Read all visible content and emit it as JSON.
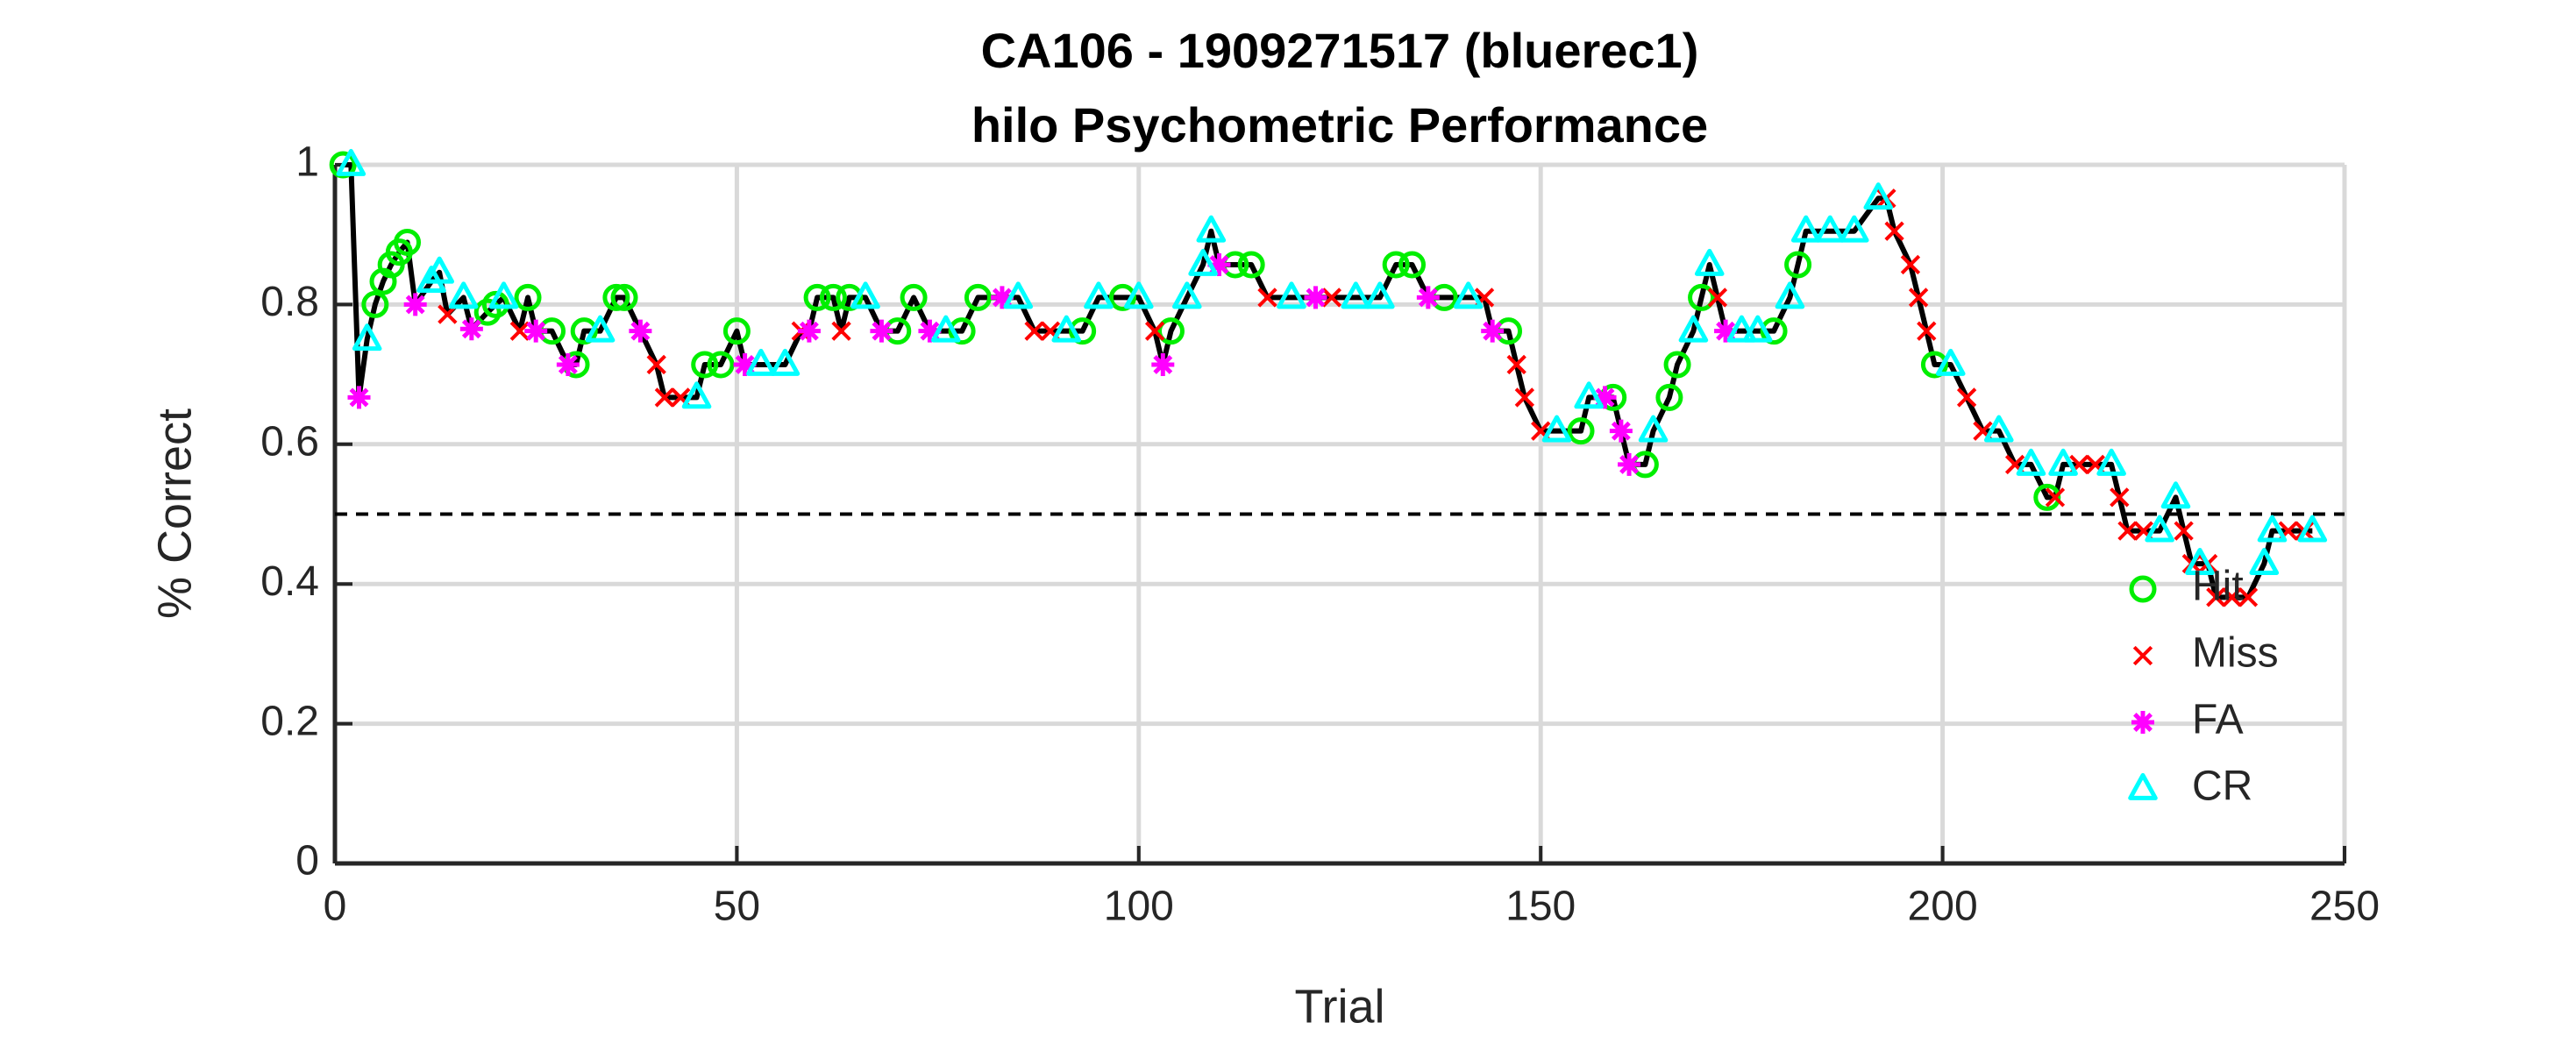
{
  "chart_data": {
    "type": "line",
    "title": "CA106 - 1909271517 (bluerec1)",
    "subtitle": "hilo Psychometric Performance",
    "x_label": "Trial",
    "y_label": "% Correct",
    "xlim": [
      0,
      250
    ],
    "ylim": [
      0,
      1
    ],
    "xticks": [
      0,
      50,
      100,
      150,
      200,
      250
    ],
    "yticks": [
      0,
      0.2,
      0.4,
      0.6,
      0.8,
      1
    ],
    "grid": true,
    "legend": "lower right",
    "reference_line": {
      "value": 0.5,
      "color": "#000000",
      "dashed": true
    },
    "line": {
      "color": "#000000",
      "x": [
        1,
        2,
        3,
        4,
        5,
        6,
        7,
        8,
        9,
        10,
        12,
        13,
        14,
        16,
        17,
        19,
        20,
        21,
        23,
        24,
        25,
        27,
        29,
        30,
        31,
        33,
        35,
        36,
        38,
        40,
        41,
        43,
        45,
        46,
        48,
        50,
        51,
        53,
        56,
        58,
        59,
        60,
        62,
        63,
        64,
        66,
        68,
        70,
        72,
        74,
        76,
        78,
        80,
        83,
        85,
        87,
        89,
        91,
        93,
        95,
        98,
        100,
        102,
        103,
        104,
        106,
        108,
        109,
        110,
        112,
        114,
        116,
        119,
        122,
        124,
        127,
        130,
        132,
        134,
        136,
        138,
        141,
        143,
        144,
        146,
        147,
        148,
        150,
        152,
        155,
        156,
        158,
        159,
        160,
        161,
        163,
        164,
        166,
        167,
        169,
        170,
        171,
        172,
        173,
        175,
        177,
        179,
        181,
        182,
        183,
        186,
        189,
        192,
        193,
        194,
        196,
        197,
        198,
        199,
        201,
        203,
        205,
        207,
        209,
        211,
        213,
        214,
        215,
        217,
        219,
        221,
        222,
        223,
        225,
        227,
        229,
        230,
        231,
        232,
        233,
        234,
        236,
        238,
        240,
        241,
        243,
        245,
        246
      ],
      "values": [
        1.0,
        1.0,
        0.667,
        0.75,
        0.8,
        0.833,
        0.857,
        0.875,
        0.889,
        0.8,
        0.833,
        0.846,
        0.786,
        0.81,
        0.765,
        0.789,
        0.8,
        0.81,
        0.762,
        0.81,
        0.762,
        0.762,
        0.714,
        0.714,
        0.762,
        0.762,
        0.81,
        0.81,
        0.762,
        0.714,
        0.667,
        0.667,
        0.667,
        0.714,
        0.714,
        0.762,
        0.714,
        0.714,
        0.714,
        0.762,
        0.762,
        0.81,
        0.81,
        0.762,
        0.81,
        0.81,
        0.762,
        0.762,
        0.81,
        0.762,
        0.762,
        0.762,
        0.81,
        0.81,
        0.81,
        0.762,
        0.762,
        0.762,
        0.762,
        0.81,
        0.81,
        0.81,
        0.762,
        0.714,
        0.762,
        0.81,
        0.857,
        0.905,
        0.857,
        0.857,
        0.857,
        0.81,
        0.81,
        0.81,
        0.81,
        0.81,
        0.81,
        0.857,
        0.857,
        0.81,
        0.81,
        0.81,
        0.81,
        0.762,
        0.762,
        0.714,
        0.667,
        0.619,
        0.619,
        0.619,
        0.667,
        0.667,
        0.667,
        0.619,
        0.571,
        0.571,
        0.619,
        0.667,
        0.714,
        0.762,
        0.81,
        0.857,
        0.81,
        0.762,
        0.762,
        0.762,
        0.762,
        0.81,
        0.857,
        0.905,
        0.905,
        0.905,
        0.952,
        0.952,
        0.905,
        0.857,
        0.81,
        0.762,
        0.714,
        0.714,
        0.667,
        0.619,
        0.619,
        0.571,
        0.571,
        0.524,
        0.524,
        0.571,
        0.571,
        0.571,
        0.571,
        0.524,
        0.476,
        0.476,
        0.476,
        0.524,
        0.476,
        0.429,
        0.429,
        0.429,
        0.381,
        0.381,
        0.381,
        0.429,
        0.476,
        0.476,
        0.476,
        0.476
      ]
    },
    "series": [
      {
        "name": "Hit",
        "color": "#00ee00",
        "marker": "circle",
        "x": [
          1,
          5,
          6,
          7,
          8,
          9,
          19,
          20,
          24,
          27,
          30,
          31,
          35,
          36,
          46,
          48,
          50,
          60,
          62,
          64,
          70,
          72,
          78,
          80,
          93,
          98,
          104,
          112,
          114,
          132,
          134,
          138,
          146,
          155,
          159,
          163,
          166,
          167,
          170,
          179,
          182,
          199,
          213
        ],
        "values": [
          1.0,
          0.8,
          0.833,
          0.857,
          0.875,
          0.889,
          0.789,
          0.8,
          0.81,
          0.762,
          0.714,
          0.762,
          0.81,
          0.81,
          0.714,
          0.714,
          0.762,
          0.81,
          0.81,
          0.81,
          0.762,
          0.81,
          0.762,
          0.81,
          0.762,
          0.81,
          0.762,
          0.857,
          0.857,
          0.857,
          0.857,
          0.81,
          0.762,
          0.619,
          0.667,
          0.571,
          0.667,
          0.714,
          0.81,
          0.762,
          0.857,
          0.714,
          0.524
        ]
      },
      {
        "name": "Miss",
        "color": "#ff0000",
        "marker": "x",
        "x": [
          14,
          23,
          40,
          41,
          43,
          58,
          63,
          87,
          89,
          102,
          116,
          124,
          143,
          147,
          148,
          150,
          172,
          193,
          194,
          196,
          197,
          198,
          203,
          205,
          209,
          214,
          217,
          219,
          222,
          223,
          225,
          230,
          231,
          233,
          234,
          236,
          238,
          243,
          245
        ],
        "values": [
          0.786,
          0.762,
          0.714,
          0.667,
          0.667,
          0.762,
          0.762,
          0.762,
          0.762,
          0.762,
          0.81,
          0.81,
          0.81,
          0.714,
          0.667,
          0.619,
          0.81,
          0.952,
          0.905,
          0.857,
          0.81,
          0.762,
          0.667,
          0.619,
          0.571,
          0.524,
          0.571,
          0.571,
          0.524,
          0.476,
          0.476,
          0.476,
          0.429,
          0.429,
          0.381,
          0.381,
          0.381,
          0.476,
          0.476
        ]
      },
      {
        "name": "FA",
        "color": "#ff00ff",
        "marker": "asterisk",
        "x": [
          3,
          10,
          17,
          25,
          29,
          38,
          51,
          59,
          68,
          74,
          83,
          103,
          110,
          122,
          136,
          144,
          158,
          160,
          161,
          173
        ],
        "values": [
          0.667,
          0.8,
          0.765,
          0.762,
          0.714,
          0.762,
          0.714,
          0.762,
          0.762,
          0.762,
          0.81,
          0.714,
          0.857,
          0.81,
          0.81,
          0.762,
          0.667,
          0.619,
          0.571,
          0.762
        ]
      },
      {
        "name": "CR",
        "color": "#00ffff",
        "marker": "triangle",
        "x": [
          2,
          4,
          12,
          13,
          16,
          21,
          33,
          45,
          53,
          56,
          66,
          76,
          85,
          91,
          95,
          100,
          106,
          108,
          109,
          119,
          127,
          130,
          141,
          152,
          156,
          164,
          169,
          171,
          175,
          177,
          181,
          183,
          186,
          189,
          192,
          201,
          207,
          211,
          215,
          221,
          227,
          229,
          232,
          240,
          241,
          246
        ],
        "values": [
          1.0,
          0.75,
          0.833,
          0.846,
          0.81,
          0.81,
          0.762,
          0.667,
          0.714,
          0.714,
          0.81,
          0.762,
          0.81,
          0.762,
          0.81,
          0.81,
          0.81,
          0.857,
          0.905,
          0.81,
          0.81,
          0.81,
          0.81,
          0.619,
          0.667,
          0.619,
          0.762,
          0.857,
          0.762,
          0.762,
          0.81,
          0.905,
          0.905,
          0.905,
          0.952,
          0.714,
          0.619,
          0.571,
          0.571,
          0.571,
          0.476,
          0.524,
          0.429,
          0.429,
          0.476,
          0.476
        ]
      }
    ]
  }
}
